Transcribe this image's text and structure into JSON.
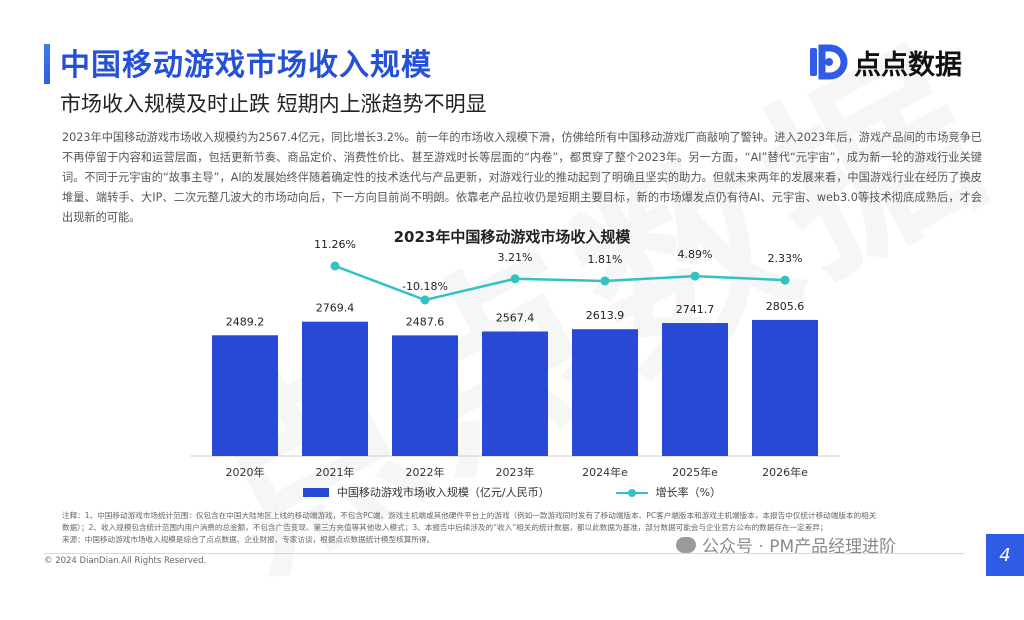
{
  "header": {
    "title": "中国移动游戏市场收入规模",
    "subtitle": "市场收入规模及时止跌 短期内上涨趋势不明显"
  },
  "logo": {
    "text": "点点数据"
  },
  "watermark": {
    "text": "点点数据"
  },
  "description": "2023年中国移动游戏市场收入规模约为2567.4亿元，同比增长3.2%。前一年的市场收入规模下滑，仿佛给所有中国移动游戏厂商敲响了警钟。进入2023年后，游戏产品间的市场竞争已不再停留于内容和运营层面，包括更新节奏、商品定价、消费性价比、甚至游戏时长等层面的“内卷”，都贯穿了整个2023年。另一方面，“AI”替代“元宇宙”，成为新一轮的游戏行业关键词。不同于元宇宙的“故事主导”，AI的发展始终伴随着确定性的技术迭代与产品更新，对游戏行业的推动起到了明确且坚实的助力。但就未来两年的发展来看，中国游戏行业在经历了换皮堆量、端转手、大IP、二次元整几波大的市场动向后，下一方向目前尚不明朗。依靠老产品拉收仍是短期主要目标，新的市场爆发点仍有待AI、元宇宙、web3.0等技术彻底成熟后，才会出现新的可能。",
  "colors": {
    "accent": "#2550d8",
    "bar": "#2849d6",
    "line": "#33c2c2"
  },
  "chart_data": {
    "type": "bar",
    "title": "2023年中国移动游戏市场收入规模",
    "categories": [
      "2020年",
      "2021年",
      "2022年",
      "2023年",
      "2024年e",
      "2025年e",
      "2026年e"
    ],
    "series": [
      {
        "name": "中国移动游戏市场收入规模（亿元/人民币）",
        "type": "bar",
        "values": [
          2489.2,
          2769.4,
          2487.6,
          2567.4,
          2613.9,
          2741.7,
          2805.6
        ],
        "labels": [
          "2489.2",
          "2769.4",
          "2487.6",
          "2567.4",
          "2613.9",
          "2741.7",
          "2805.6"
        ]
      },
      {
        "name": "增长率（%）",
        "type": "line",
        "values": [
          null,
          11.26,
          -10.18,
          3.21,
          1.81,
          4.89,
          2.33
        ],
        "labels": [
          "",
          "11.26%",
          "-10.18%",
          "3.21%",
          "1.81%",
          "4.89%",
          "2.33%"
        ]
      }
    ],
    "legend": [
      "中国移动游戏市场收入规模（亿元/人民币）",
      "增长率（%）"
    ],
    "legend_position": "bottom",
    "grid": false
  },
  "notes": [
    "注释：1、中国移动游戏市场统计范围：仅包含在中国大陆地区上线的移动端游戏，不包含PC端、游戏主机端或其他硬件平台上的游戏（例如一款游戏同时发有了移动端版本、PC客户端版本和游戏主机端版本，本报告中仅统计移动端版本的相关",
    "数据）；2、收入规模包含统计范围内用户消费的总金额，不包含广告变现、第三方充值等其他收入模式；3、本报告中后续涉及的“收入”相关的统计数据，都以此数据为基准，部分数据可能会与企业官方公布的数据存在一定差异；",
    "来源：中国移动游戏市场收入规模是综合了点点数据、企业财报、专家访谈，根据点点数据统计模型核算所得。"
  ],
  "footer": {
    "copyright": "© 2024 DianDian.All Rights Reserved.",
    "wechat": "公众号 · PM产品经理进阶",
    "page_number": "4"
  }
}
